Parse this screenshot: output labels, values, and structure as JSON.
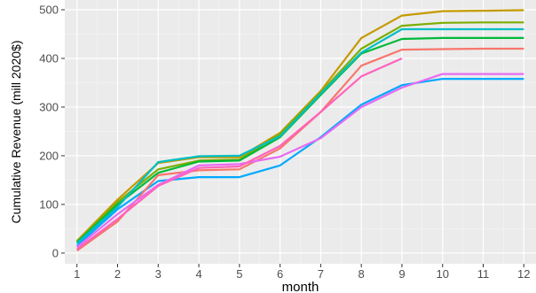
{
  "chart_data": {
    "type": "line",
    "xlabel": "month",
    "ylabel": "Cumulative Revenue (mill 2020$)",
    "xlim": [
      0.7,
      12.3
    ],
    "ylim": [
      -22,
      520
    ],
    "x_ticks": [
      1,
      2,
      3,
      4,
      5,
      6,
      7,
      8,
      9,
      10,
      11,
      12
    ],
    "y_ticks": [
      0,
      100,
      200,
      300,
      400,
      500
    ],
    "grid": true,
    "legend": "none",
    "background": "#ebebeb",
    "series": [
      {
        "color": "#c49a00",
        "x": [
          1,
          2,
          3,
          4,
          5,
          6,
          7,
          8,
          9,
          10,
          11,
          12
        ],
        "y": [
          25,
          110,
          185,
          197,
          197,
          247,
          333,
          442,
          488,
          497,
          498,
          499
        ]
      },
      {
        "color": "#7cae00",
        "x": [
          1,
          2,
          3,
          4,
          5,
          6,
          7,
          8,
          9,
          10,
          11,
          12
        ],
        "y": [
          23,
          105,
          172,
          190,
          192,
          245,
          330,
          420,
          467,
          473,
          474,
          474
        ]
      },
      {
        "color": "#00ba38",
        "x": [
          1,
          2,
          3,
          4,
          5,
          6,
          7,
          8,
          9,
          10,
          11,
          12
        ],
        "y": [
          22,
          100,
          165,
          188,
          190,
          238,
          325,
          410,
          440,
          442,
          442,
          442
        ]
      },
      {
        "color": "#00bfc4",
        "x": [
          1,
          2,
          3,
          4,
          5,
          6,
          7,
          8,
          9,
          10,
          11,
          12
        ],
        "y": [
          20,
          95,
          187,
          199,
          200,
          240,
          328,
          412,
          460,
          460,
          460,
          460
        ]
      },
      {
        "color": "#00a9ff",
        "x": [
          1,
          2,
          3,
          4,
          5,
          6,
          7,
          8,
          9,
          10,
          11,
          12
        ],
        "y": [
          15,
          90,
          148,
          156,
          156,
          180,
          238,
          305,
          345,
          358,
          358,
          358
        ]
      },
      {
        "color": "#f8766d",
        "x": [
          1,
          2,
          3,
          4,
          5,
          6,
          7,
          8,
          9,
          10,
          11,
          12
        ],
        "y": [
          5,
          65,
          160,
          170,
          172,
          215,
          290,
          385,
          418,
          419,
          420,
          420
        ]
      },
      {
        "color": "#e76bf3",
        "x": [
          1,
          2,
          3,
          4,
          5,
          6,
          7,
          8,
          9,
          10,
          11,
          12
        ],
        "y": [
          12,
          80,
          140,
          180,
          183,
          198,
          236,
          300,
          340,
          368,
          368,
          368
        ]
      },
      {
        "color": "#ff62bc",
        "x": [
          1,
          2,
          3,
          4,
          5,
          6,
          7,
          8,
          9
        ],
        "y": [
          8,
          70,
          138,
          175,
          178,
          220,
          290,
          363,
          400
        ]
      }
    ]
  }
}
